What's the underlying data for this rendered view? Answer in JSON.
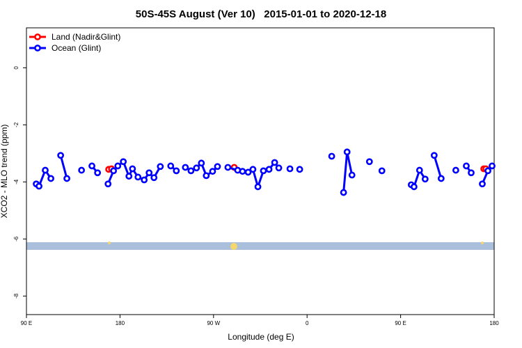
{
  "chart_data": {
    "type": "line",
    "title": "50S-45S August (Ver 10)   2015-01-01 to 2020-12-18",
    "xlabel": "Longitude (deg E)",
    "ylabel": "XCO2 - MLO trend (ppm)",
    "xlim": [
      90,
      540
    ],
    "ylim": [
      -8.65,
      1.4
    ],
    "xticks": [
      {
        "value": 90,
        "label": "90 E"
      },
      180,
      {
        "value": 270,
        "label": "90 W"
      },
      {
        "value": 360,
        "label": "0"
      },
      {
        "value": 450,
        "label": "90 E"
      },
      {
        "value": 540,
        "label": "180"
      }
    ],
    "yticks": [
      0,
      -2,
      -4,
      -6,
      -8
    ],
    "legend": "top-left",
    "series": [
      {
        "name": "Land (Nadir&Glint)",
        "color": "#ff0000",
        "x": [
          169.1,
          171.8,
          null,
          289.9,
          null,
          530,
          532
        ],
        "values": [
          -3.56,
          -3.54,
          null,
          -3.49,
          null,
          -3.54,
          -3.54
        ]
      },
      {
        "name": "Ocean (Glint)",
        "color": "#0000ff",
        "x": [
          99.4,
          102.1,
          108.1,
          113.5,
          null,
          122.9,
          128.9,
          null,
          143,
          null,
          153,
          158.4,
          null,
          168.5,
          173.8,
          177.9,
          183.2,
          188.6,
          192,
          197.3,
          203.3,
          208,
          212.7,
          218.8,
          null,
          228.8,
          234.2,
          null,
          242.9,
          248.3,
          253.6,
          258.3,
          263,
          269.1,
          273.8,
          null,
          283.8,
          293.2,
          297.9,
          303.3,
          307.9,
          312.7,
          318,
          323.4,
          328.8,
          332.8,
          null,
          343.5,
          null,
          352.9,
          null,
          383.7,
          null,
          395.1,
          398.5,
          403.2,
          null,
          420,
          null,
          432,
          null,
          460.2,
          462.9,
          468.2,
          473.6,
          null,
          482.3,
          489,
          null,
          503.1,
          null,
          513.2,
          517.9,
          null,
          528.6,
          534,
          538
        ],
        "values": [
          -4.07,
          -4.15,
          -3.59,
          -3.88,
          null,
          -3.07,
          -3.88,
          null,
          -3.59,
          null,
          -3.44,
          -3.68,
          null,
          -4.07,
          -3.61,
          -3.44,
          -3.29,
          -3.8,
          -3.54,
          -3.83,
          -3.93,
          -3.68,
          -3.85,
          -3.46,
          null,
          -3.44,
          -3.61,
          null,
          -3.49,
          -3.61,
          -3.51,
          -3.34,
          -3.78,
          -3.63,
          -3.46,
          null,
          -3.49,
          -3.59,
          -3.63,
          -3.66,
          -3.56,
          -4.17,
          -3.61,
          -3.56,
          -3.32,
          -3.51,
          null,
          -3.54,
          null,
          -3.56,
          null,
          -3.1,
          null,
          -4.37,
          -2.95,
          -3.76,
          null,
          -3.29,
          null,
          -3.61,
          null,
          -4.1,
          -4.17,
          -3.59,
          -3.9,
          null,
          -3.07,
          -3.88,
          null,
          -3.59,
          null,
          -3.44,
          -3.68,
          null,
          -4.07,
          -3.61,
          -3.44
        ]
      }
    ]
  }
}
